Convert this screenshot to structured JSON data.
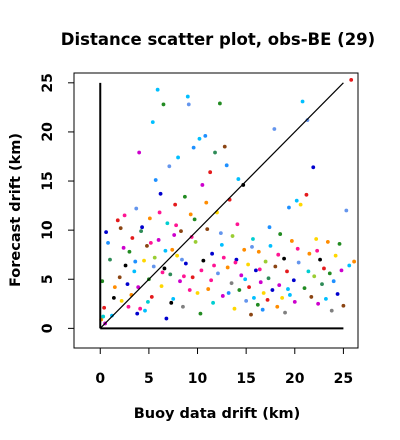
{
  "chart_data": {
    "type": "scatter",
    "title": "Distance scatter plot, obs-BE (29)",
    "xlabel": "Buoy data drift (km)",
    "ylabel": "Forecast drift (km)",
    "xlim": [
      -2.7,
      26.5
    ],
    "ylim": [
      -2.0,
      26.0
    ],
    "xticks": [
      0,
      5,
      10,
      15,
      20,
      25
    ],
    "yticks": [
      0,
      5,
      10,
      15,
      20,
      25
    ],
    "xtick_labels": [
      "0",
      "5",
      "10",
      "15",
      "20",
      "25"
    ],
    "ytick_labels": [
      "0",
      "5",
      "10",
      "15",
      "20",
      "25"
    ],
    "grid": false,
    "legend": "none",
    "reference_lines": [
      {
        "name": "diagonal",
        "x": [
          0,
          25
        ],
        "y": [
          0,
          25
        ],
        "color": "#000000"
      },
      {
        "name": "y-axis-line",
        "x": [
          0,
          0
        ],
        "y": [
          0,
          25
        ],
        "color": "#000000"
      },
      {
        "name": "x-axis-line",
        "x": [
          0,
          25
        ],
        "y": [
          0,
          0
        ],
        "color": "#000000"
      }
    ],
    "colors": [
      "#e41a1c",
      "#0000cd",
      "#228b22",
      "#cd00cd",
      "#00bfff",
      "#ffd700",
      "#ff8c00",
      "#8b4513",
      "#2e8b57",
      "#6495ed",
      "#1e90ff",
      "#9acd32",
      "#000000",
      "#00ced1",
      "#ff1493",
      "#808080"
    ],
    "points": [
      {
        "x": 0.1,
        "y": 0.9,
        "c": 6
      },
      {
        "x": 0.3,
        "y": 1.2,
        "c": 13
      },
      {
        "x": 0.2,
        "y": 4.8,
        "c": 2
      },
      {
        "x": 0.4,
        "y": 2.1,
        "c": 0
      },
      {
        "x": 0.6,
        "y": 9.8,
        "c": 1
      },
      {
        "x": 0.8,
        "y": 8.7,
        "c": 10
      },
      {
        "x": 0.5,
        "y": 0.5,
        "c": 3
      },
      {
        "x": 1.2,
        "y": 1.3,
        "c": 4
      },
      {
        "x": 1.5,
        "y": 4.2,
        "c": 6
      },
      {
        "x": 1.8,
        "y": 11.0,
        "c": 0
      },
      {
        "x": 2.0,
        "y": 5.2,
        "c": 7
      },
      {
        "x": 2.2,
        "y": 2.8,
        "c": 5
      },
      {
        "x": 2.4,
        "y": 8.2,
        "c": 3
      },
      {
        "x": 2.6,
        "y": 6.4,
        "c": 12
      },
      {
        "x": 2.8,
        "y": 4.5,
        "c": 1
      },
      {
        "x": 3.0,
        "y": 7.8,
        "c": 2
      },
      {
        "x": 3.2,
        "y": 3.4,
        "c": 6
      },
      {
        "x": 3.3,
        "y": 9.2,
        "c": 0
      },
      {
        "x": 3.5,
        "y": 5.8,
        "c": 4
      },
      {
        "x": 3.7,
        "y": 12.2,
        "c": 9
      },
      {
        "x": 3.9,
        "y": 4.2,
        "c": 3
      },
      {
        "x": 4.0,
        "y": 17.9,
        "c": 3
      },
      {
        "x": 4.1,
        "y": 2.0,
        "c": 14
      },
      {
        "x": 4.3,
        "y": 10.3,
        "c": 1
      },
      {
        "x": 4.5,
        "y": 6.9,
        "c": 5
      },
      {
        "x": 4.6,
        "y": 1.8,
        "c": 4
      },
      {
        "x": 4.8,
        "y": 8.4,
        "c": 7
      },
      {
        "x": 5.0,
        "y": 5.0,
        "c": 2
      },
      {
        "x": 5.1,
        "y": 11.2,
        "c": 6
      },
      {
        "x": 5.3,
        "y": 3.2,
        "c": 0
      },
      {
        "x": 5.4,
        "y": 21.0,
        "c": 4
      },
      {
        "x": 5.6,
        "y": 7.2,
        "c": 11
      },
      {
        "x": 5.7,
        "y": 15.1,
        "c": 10
      },
      {
        "x": 5.9,
        "y": 24.3,
        "c": 4
      },
      {
        "x": 6.0,
        "y": 9.0,
        "c": 3
      },
      {
        "x": 6.2,
        "y": 13.7,
        "c": 1
      },
      {
        "x": 6.3,
        "y": 4.3,
        "c": 5
      },
      {
        "x": 6.5,
        "y": 22.8,
        "c": 2
      },
      {
        "x": 6.6,
        "y": 6.1,
        "c": 12
      },
      {
        "x": 6.8,
        "y": 1.0,
        "c": 1
      },
      {
        "x": 6.9,
        "y": 10.7,
        "c": 13
      },
      {
        "x": 7.1,
        "y": 16.5,
        "c": 9
      },
      {
        "x": 7.2,
        "y": 5.5,
        "c": 8
      },
      {
        "x": 7.4,
        "y": 8.0,
        "c": 6
      },
      {
        "x": 7.5,
        "y": 3.0,
        "c": 4
      },
      {
        "x": 7.7,
        "y": 12.6,
        "c": 0
      },
      {
        "x": 7.9,
        "y": 7.4,
        "c": 5
      },
      {
        "x": 8.0,
        "y": 17.4,
        "c": 4
      },
      {
        "x": 8.2,
        "y": 4.8,
        "c": 3
      },
      {
        "x": 8.3,
        "y": 9.9,
        "c": 7
      },
      {
        "x": 8.5,
        "y": 2.2,
        "c": 15
      },
      {
        "x": 8.7,
        "y": 13.4,
        "c": 2
      },
      {
        "x": 8.8,
        "y": 6.6,
        "c": 1
      },
      {
        "x": 9.0,
        "y": 23.6,
        "c": 4
      },
      {
        "x": 9.1,
        "y": 22.8,
        "c": 9
      },
      {
        "x": 9.3,
        "y": 11.6,
        "c": 6
      },
      {
        "x": 9.5,
        "y": 5.2,
        "c": 0
      },
      {
        "x": 9.6,
        "y": 18.4,
        "c": 10
      },
      {
        "x": 9.8,
        "y": 8.8,
        "c": 11
      },
      {
        "x": 10.0,
        "y": 3.6,
        "c": 5
      },
      {
        "x": 10.2,
        "y": 19.3,
        "c": 4
      },
      {
        "x": 10.3,
        "y": 1.5,
        "c": 2
      },
      {
        "x": 10.5,
        "y": 14.6,
        "c": 3
      },
      {
        "x": 10.6,
        "y": 6.9,
        "c": 12
      },
      {
        "x": 10.8,
        "y": 19.6,
        "c": 10
      },
      {
        "x": 11.0,
        "y": 10.1,
        "c": 7
      },
      {
        "x": 11.1,
        "y": 4.0,
        "c": 6
      },
      {
        "x": 11.3,
        "y": 15.9,
        "c": 0
      },
      {
        "x": 11.5,
        "y": 7.6,
        "c": 1
      },
      {
        "x": 11.6,
        "y": 2.6,
        "c": 13
      },
      {
        "x": 11.8,
        "y": 17.9,
        "c": 8
      },
      {
        "x": 12.0,
        "y": 11.8,
        "c": 5
      },
      {
        "x": 12.1,
        "y": 5.6,
        "c": 9
      },
      {
        "x": 12.3,
        "y": 22.9,
        "c": 2
      },
      {
        "x": 12.5,
        "y": 8.5,
        "c": 4
      },
      {
        "x": 12.6,
        "y": 3.3,
        "c": 3
      },
      {
        "x": 12.8,
        "y": 18.5,
        "c": 7
      },
      {
        "x": 13.0,
        "y": 16.6,
        "c": 10
      },
      {
        "x": 13.1,
        "y": 6.2,
        "c": 6
      },
      {
        "x": 13.3,
        "y": 13.1,
        "c": 0
      },
      {
        "x": 13.5,
        "y": 4.6,
        "c": 15
      },
      {
        "x": 13.6,
        "y": 9.4,
        "c": 11
      },
      {
        "x": 13.8,
        "y": 2.0,
        "c": 5
      },
      {
        "x": 14.0,
        "y": 7.0,
        "c": 1
      },
      {
        "x": 14.2,
        "y": 15.2,
        "c": 4
      },
      {
        "x": 14.3,
        "y": 3.9,
        "c": 2
      },
      {
        "x": 14.5,
        "y": 5.4,
        "c": 3
      },
      {
        "x": 14.7,
        "y": 14.6,
        "c": 12
      },
      {
        "x": 14.8,
        "y": 8.0,
        "c": 6
      },
      {
        "x": 15.0,
        "y": 2.8,
        "c": 9
      },
      {
        "x": 15.2,
        "y": 6.5,
        "c": 5
      },
      {
        "x": 15.3,
        "y": 4.2,
        "c": 0
      },
      {
        "x": 15.5,
        "y": 1.4,
        "c": 7
      },
      {
        "x": 15.7,
        "y": 9.1,
        "c": 13
      },
      {
        "x": 15.8,
        "y": 3.1,
        "c": 4
      },
      {
        "x": 16.0,
        "y": 5.9,
        "c": 1
      },
      {
        "x": 16.2,
        "y": 2.4,
        "c": 2
      },
      {
        "x": 16.3,
        "y": 7.8,
        "c": 6
      },
      {
        "x": 16.5,
        "y": 4.7,
        "c": 3
      },
      {
        "x": 16.7,
        "y": 1.9,
        "c": 10
      },
      {
        "x": 16.8,
        "y": 3.6,
        "c": 5
      },
      {
        "x": 17.0,
        "y": 6.8,
        "c": 11
      },
      {
        "x": 17.2,
        "y": 2.9,
        "c": 0
      },
      {
        "x": 17.3,
        "y": 5.1,
        "c": 8
      },
      {
        "x": 17.5,
        "y": 8.4,
        "c": 4
      },
      {
        "x": 17.7,
        "y": 3.9,
        "c": 1
      },
      {
        "x": 17.9,
        "y": 20.3,
        "c": 9
      },
      {
        "x": 18.0,
        "y": 6.3,
        "c": 7
      },
      {
        "x": 18.2,
        "y": 2.2,
        "c": 6
      },
      {
        "x": 18.4,
        "y": 4.4,
        "c": 3
      },
      {
        "x": 18.5,
        "y": 9.6,
        "c": 2
      },
      {
        "x": 18.7,
        "y": 3.1,
        "c": 5
      },
      {
        "x": 18.9,
        "y": 7.1,
        "c": 12
      },
      {
        "x": 19.0,
        "y": 1.6,
        "c": 15
      },
      {
        "x": 19.2,
        "y": 5.8,
        "c": 0
      },
      {
        "x": 19.4,
        "y": 12.3,
        "c": 10
      },
      {
        "x": 19.5,
        "y": 3.4,
        "c": 4
      },
      {
        "x": 19.7,
        "y": 8.9,
        "c": 6
      },
      {
        "x": 19.9,
        "y": 4.9,
        "c": 1
      },
      {
        "x": 20.0,
        "y": 2.7,
        "c": 3
      },
      {
        "x": 20.2,
        "y": 13.0,
        "c": 4
      },
      {
        "x": 20.4,
        "y": 6.7,
        "c": 9
      },
      {
        "x": 20.6,
        "y": 12.6,
        "c": 5
      },
      {
        "x": 20.8,
        "y": 23.1,
        "c": 4
      },
      {
        "x": 21.0,
        "y": 4.1,
        "c": 2
      },
      {
        "x": 21.2,
        "y": 13.6,
        "c": 0
      },
      {
        "x": 21.3,
        "y": 21.2,
        "c": 9
      },
      {
        "x": 21.5,
        "y": 7.6,
        "c": 6
      },
      {
        "x": 21.7,
        "y": 3.2,
        "c": 7
      },
      {
        "x": 21.9,
        "y": 16.4,
        "c": 1
      },
      {
        "x": 22.0,
        "y": 5.3,
        "c": 11
      },
      {
        "x": 22.2,
        "y": 9.1,
        "c": 5
      },
      {
        "x": 22.4,
        "y": 2.5,
        "c": 3
      },
      {
        "x": 22.6,
        "y": 7.0,
        "c": 12
      },
      {
        "x": 22.8,
        "y": 4.5,
        "c": 8
      },
      {
        "x": 23.0,
        "y": 6.1,
        "c": 0
      },
      {
        "x": 23.2,
        "y": 3.0,
        "c": 4
      },
      {
        "x": 23.4,
        "y": 8.8,
        "c": 6
      },
      {
        "x": 23.6,
        "y": 5.6,
        "c": 2
      },
      {
        "x": 23.8,
        "y": 1.8,
        "c": 15
      },
      {
        "x": 24.0,
        "y": 4.8,
        "c": 10
      },
      {
        "x": 24.2,
        "y": 7.4,
        "c": 5
      },
      {
        "x": 24.4,
        "y": 3.5,
        "c": 1
      },
      {
        "x": 24.6,
        "y": 8.6,
        "c": 2
      },
      {
        "x": 24.8,
        "y": 5.9,
        "c": 3
      },
      {
        "x": 25.0,
        "y": 2.3,
        "c": 7
      },
      {
        "x": 25.3,
        "y": 12.0,
        "c": 9
      },
      {
        "x": 25.6,
        "y": 6.4,
        "c": 4
      },
      {
        "x": 25.8,
        "y": 25.3,
        "c": 0
      },
      {
        "x": 26.1,
        "y": 6.8,
        "c": 6
      },
      {
        "x": 1.0,
        "y": 7.0,
        "c": 8
      },
      {
        "x": 1.4,
        "y": 3.1,
        "c": 12
      },
      {
        "x": 2.1,
        "y": 10.2,
        "c": 7
      },
      {
        "x": 2.9,
        "y": 2.2,
        "c": 14
      },
      {
        "x": 3.6,
        "y": 6.8,
        "c": 10
      },
      {
        "x": 4.2,
        "y": 9.9,
        "c": 8
      },
      {
        "x": 4.9,
        "y": 2.7,
        "c": 13
      },
      {
        "x": 5.5,
        "y": 6.3,
        "c": 9
      },
      {
        "x": 6.1,
        "y": 11.8,
        "c": 14
      },
      {
        "x": 6.7,
        "y": 7.9,
        "c": 4
      },
      {
        "x": 7.3,
        "y": 2.6,
        "c": 12
      },
      {
        "x": 7.8,
        "y": 10.5,
        "c": 14
      },
      {
        "x": 8.4,
        "y": 7.0,
        "c": 9
      },
      {
        "x": 9.2,
        "y": 3.9,
        "c": 14
      },
      {
        "x": 9.7,
        "y": 11.1,
        "c": 2
      },
      {
        "x": 10.4,
        "y": 5.9,
        "c": 14
      },
      {
        "x": 10.9,
        "y": 12.8,
        "c": 6
      },
      {
        "x": 11.7,
        "y": 6.4,
        "c": 14
      },
      {
        "x": 12.4,
        "y": 9.7,
        "c": 9
      },
      {
        "x": 13.2,
        "y": 3.6,
        "c": 10
      },
      {
        "x": 14.1,
        "y": 10.6,
        "c": 14
      },
      {
        "x": 14.9,
        "y": 5.0,
        "c": 4
      },
      {
        "x": 15.6,
        "y": 8.3,
        "c": 9
      },
      {
        "x": 16.4,
        "y": 6.0,
        "c": 14
      },
      {
        "x": 17.4,
        "y": 10.3,
        "c": 10
      },
      {
        "x": 18.3,
        "y": 7.5,
        "c": 14
      },
      {
        "x": 19.3,
        "y": 4.0,
        "c": 4
      },
      {
        "x": 20.3,
        "y": 8.1,
        "c": 14
      },
      {
        "x": 21.4,
        "y": 5.8,
        "c": 13
      },
      {
        "x": 22.3,
        "y": 7.9,
        "c": 14
      },
      {
        "x": 5.2,
        "y": 8.7,
        "c": 14
      },
      {
        "x": 6.4,
        "y": 5.7,
        "c": 14
      },
      {
        "x": 7.6,
        "y": 9.5,
        "c": 3
      },
      {
        "x": 8.6,
        "y": 5.3,
        "c": 14
      },
      {
        "x": 9.4,
        "y": 9.3,
        "c": 14
      },
      {
        "x": 11.4,
        "y": 4.9,
        "c": 14
      },
      {
        "x": 12.7,
        "y": 7.2,
        "c": 14
      },
      {
        "x": 13.9,
        "y": 6.7,
        "c": 14
      },
      {
        "x": 2.5,
        "y": 11.5,
        "c": 14
      },
      {
        "x": 3.8,
        "y": 1.5,
        "c": 1
      }
    ]
  }
}
